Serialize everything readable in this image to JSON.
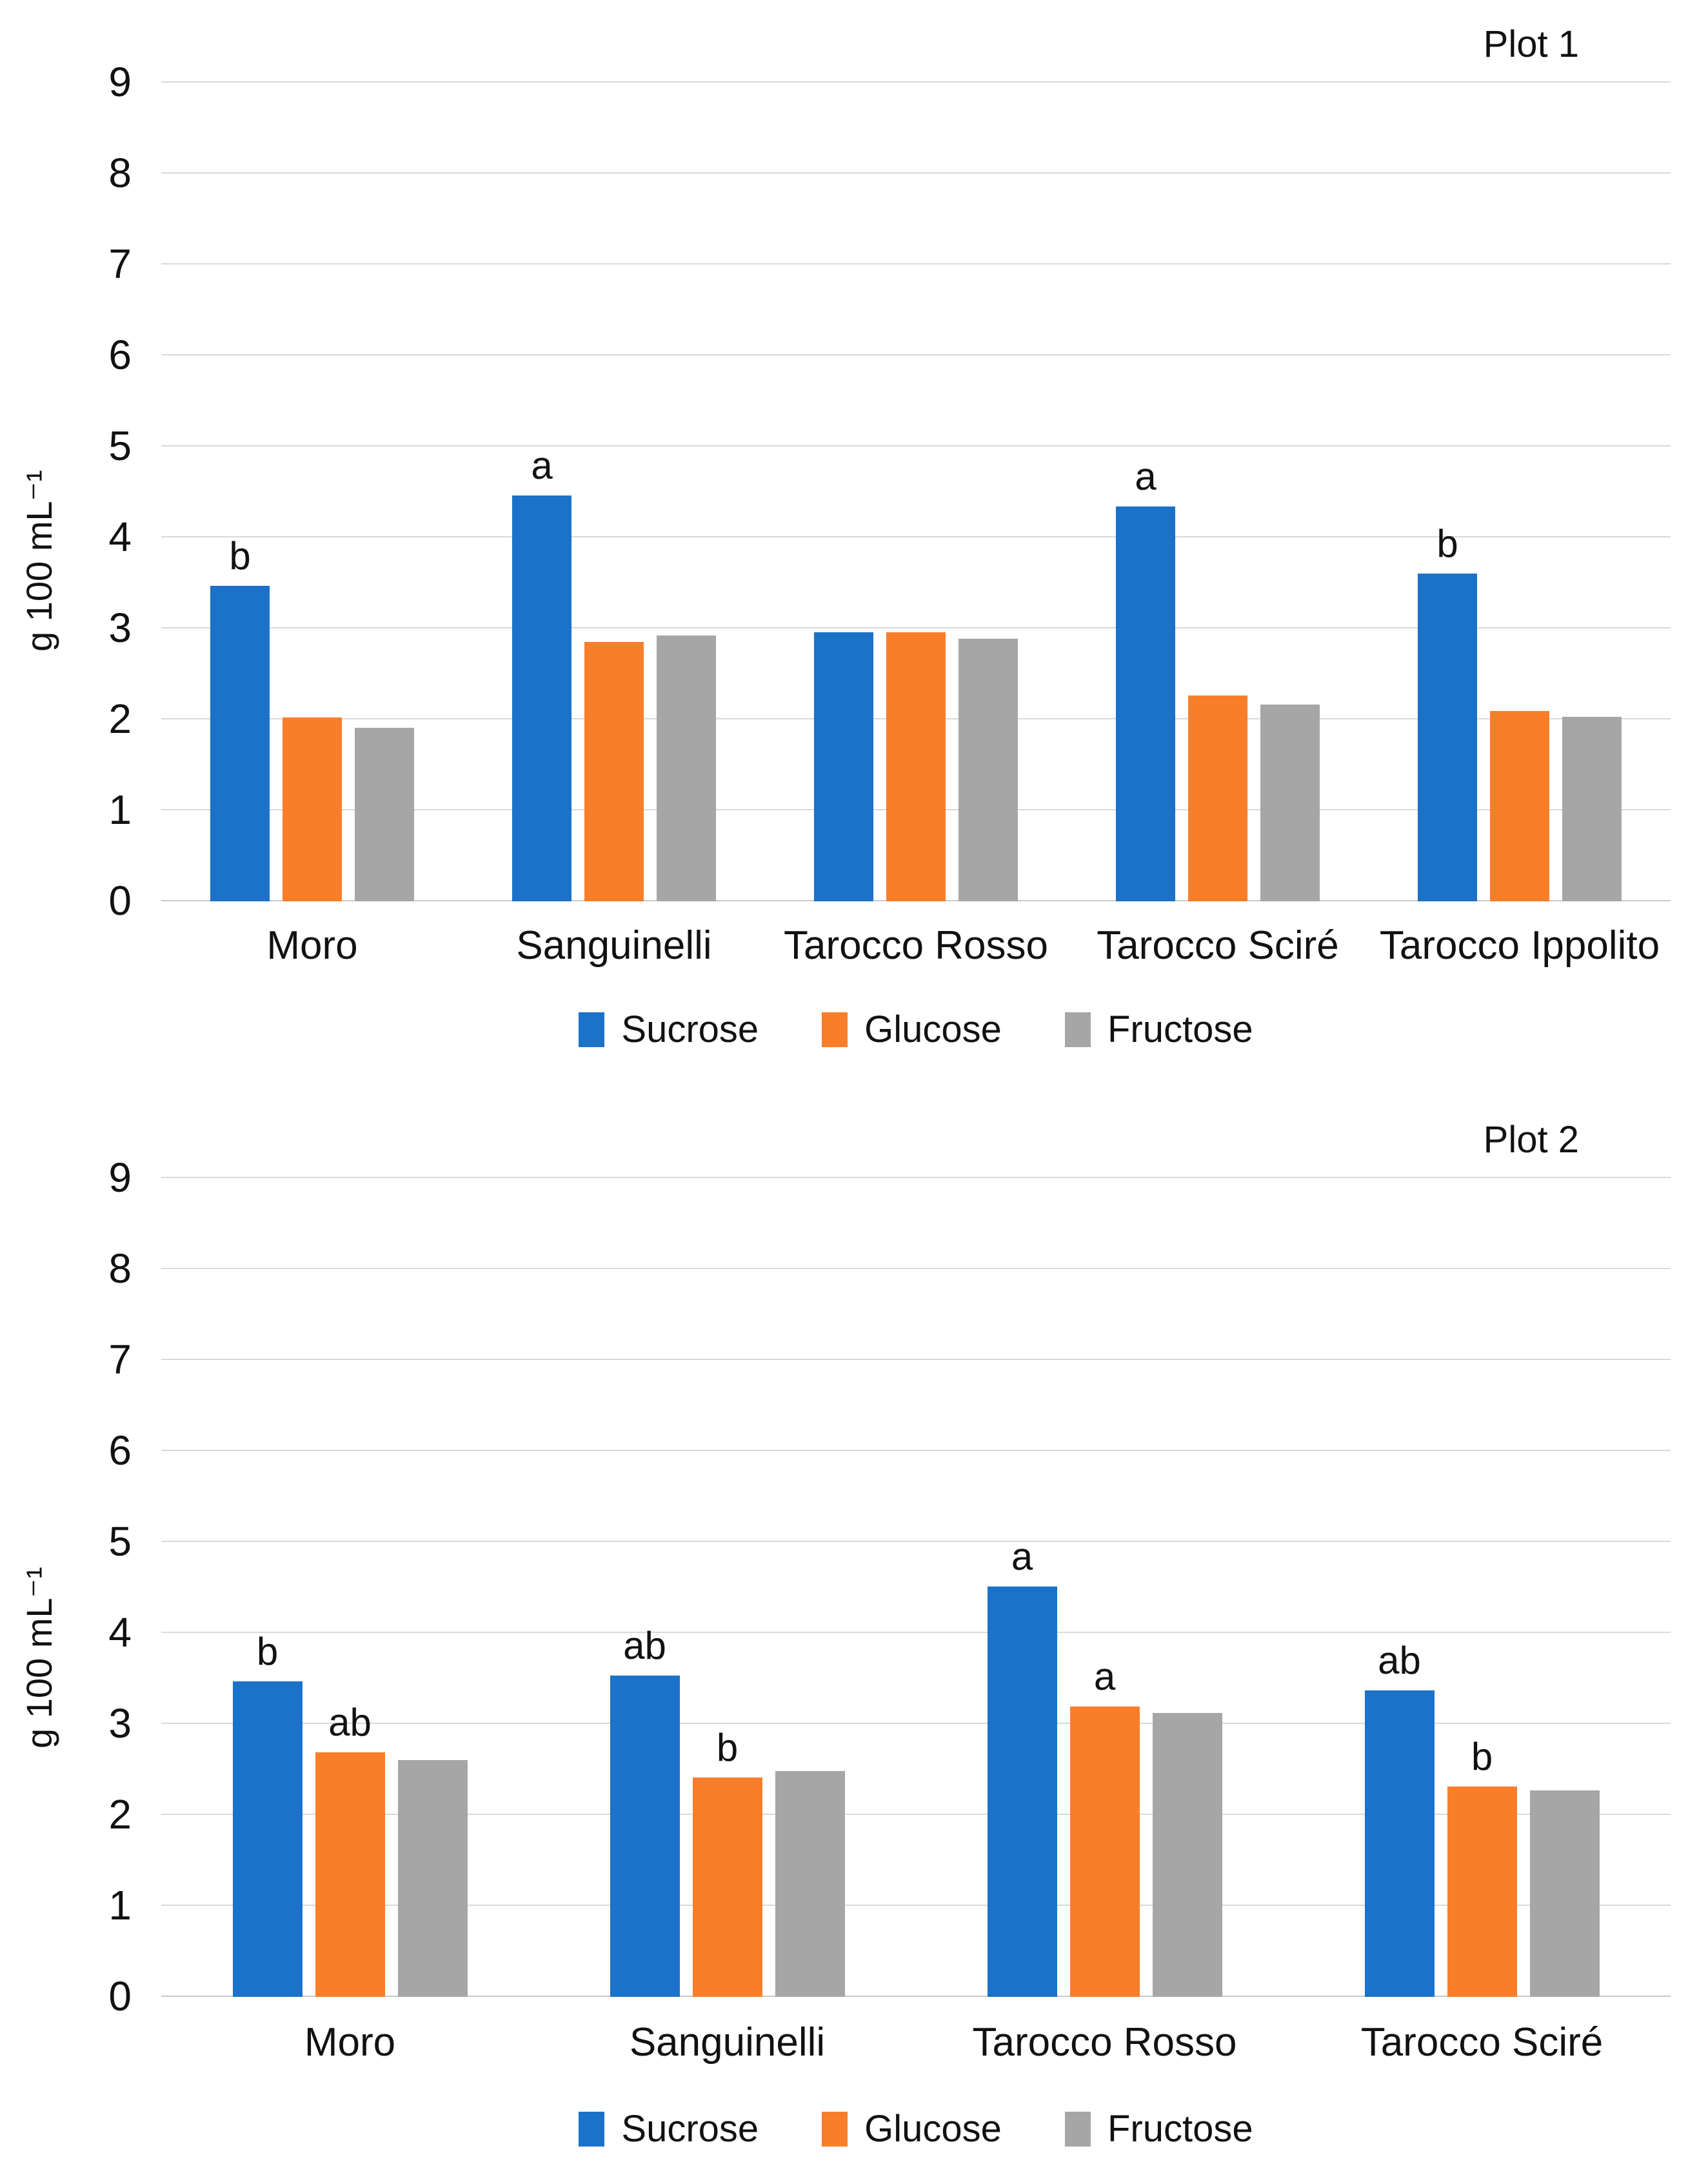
{
  "colors": {
    "sucrose": "#1b72c8",
    "glucose": "#f97e2a",
    "fructose": "#a6a6a6",
    "gridline": "#d9d9d9",
    "zero_line": "#c9c9c9",
    "text": "#111111"
  },
  "chart_data": [
    {
      "type": "bar",
      "title": "Plot 1",
      "xlabel": "",
      "ylabel": "g 100 mL⁻¹",
      "ylim": [
        0,
        9
      ],
      "yticks": [
        0,
        1,
        2,
        3,
        4,
        5,
        6,
        7,
        8,
        9
      ],
      "grid": true,
      "legend_position": "bottom",
      "categories": [
        "Moro",
        "Sanguinelli",
        "Tarocco Rosso",
        "Tarocco Sciré",
        "Tarocco Ippolito"
      ],
      "series": [
        {
          "name": "Sucrose",
          "color": "#1b72c8",
          "values": [
            3.47,
            4.46,
            2.96,
            4.34,
            3.6
          ],
          "letters": [
            "b",
            "a",
            "",
            "a",
            "b"
          ]
        },
        {
          "name": "Glucose",
          "color": "#f97e2a",
          "values": [
            2.02,
            2.85,
            2.96,
            2.26,
            2.09
          ],
          "letters": [
            "",
            "",
            "",
            "",
            ""
          ]
        },
        {
          "name": "Fructose",
          "color": "#a6a6a6",
          "values": [
            1.91,
            2.92,
            2.89,
            2.16,
            2.03
          ],
          "letters": [
            "",
            "",
            "",
            "",
            ""
          ]
        }
      ]
    },
    {
      "type": "bar",
      "title": "Plot 2",
      "xlabel": "",
      "ylabel": "g 100 mL⁻¹",
      "ylim": [
        0,
        9
      ],
      "yticks": [
        0,
        1,
        2,
        3,
        4,
        5,
        6,
        7,
        8,
        9
      ],
      "grid": true,
      "legend_position": "bottom",
      "categories": [
        "Moro",
        "Sanguinelli",
        "Tarocco Rosso",
        "Tarocco Sciré"
      ],
      "series": [
        {
          "name": "Sucrose",
          "color": "#1b72c8",
          "values": [
            3.47,
            3.53,
            4.51,
            3.37
          ],
          "letters": [
            "b",
            "ab",
            "a",
            "ab"
          ]
        },
        {
          "name": "Glucose",
          "color": "#f97e2a",
          "values": [
            2.69,
            2.41,
            3.19,
            2.31
          ],
          "letters": [
            "ab",
            "b",
            "a",
            "b"
          ]
        },
        {
          "name": "Fructose",
          "color": "#a6a6a6",
          "values": [
            2.6,
            2.48,
            3.12,
            2.27
          ],
          "letters": [
            "",
            "",
            "",
            ""
          ]
        }
      ]
    }
  ]
}
